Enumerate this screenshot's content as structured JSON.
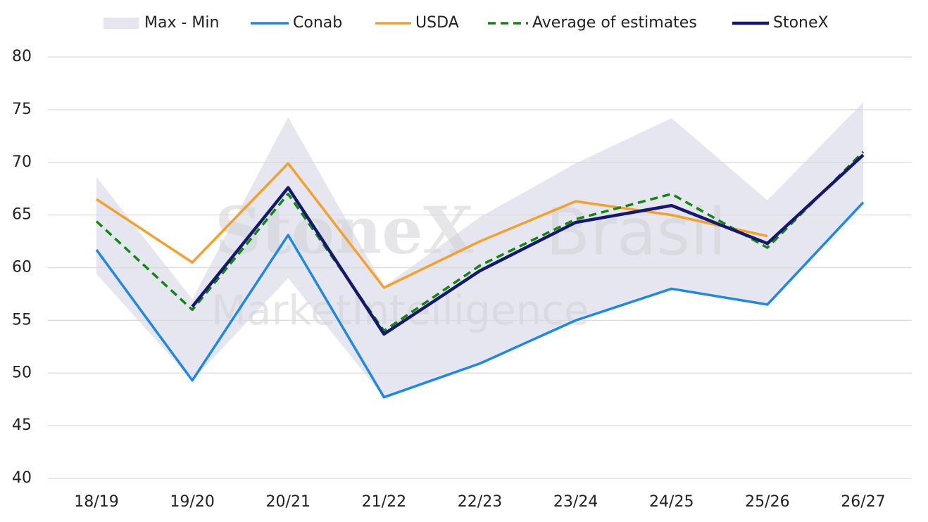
{
  "chart_data": {
    "type": "line",
    "categories": [
      "18/19",
      "19/20",
      "20/21",
      "21/22",
      "22/23",
      "23/24",
      "24/25",
      "25/26",
      "26/27"
    ],
    "band": {
      "name": "Max - Min",
      "color": "#e6e6f0",
      "upper": [
        68.6,
        57.0,
        74.3,
        58.2,
        64.8,
        69.9,
        74.2,
        66.4,
        75.7
      ],
      "lower": [
        59.4,
        49.3,
        59.0,
        47.7,
        50.9,
        55.0,
        58.0,
        56.5,
        66.2
      ]
    },
    "series": [
      {
        "name": "Conab",
        "color": "#1e88e5",
        "width": 3.5,
        "values": [
          61.7,
          49.3,
          63.1,
          47.7,
          50.9,
          55.0,
          58.0,
          56.5,
          66.2
        ]
      },
      {
        "name": "USDA",
        "color": "#f4a02a",
        "width": 3.5,
        "values": [
          66.5,
          60.5,
          69.9,
          58.1,
          62.5,
          66.3,
          65.0,
          63.0,
          null
        ]
      },
      {
        "name": "Average of estimates",
        "color": "#0d8a0d",
        "width": 3.5,
        "dashed": true,
        "values": [
          64.4,
          56.0,
          67.0,
          54.0,
          60.2,
          64.6,
          67.0,
          61.9,
          71.0
        ]
      },
      {
        "name": "StoneX",
        "color": "#14196e",
        "width": 4.5,
        "values": [
          null,
          56.3,
          67.6,
          53.7,
          59.7,
          64.3,
          65.9,
          62.3,
          70.7
        ]
      }
    ],
    "watermark": [
      "StoneX",
      "Brasil",
      "MarketIntelligence"
    ],
    "ylim": [
      40,
      80
    ],
    "yticks": [
      40,
      45,
      50,
      55,
      60,
      65,
      70,
      75,
      80
    ],
    "grid": true,
    "legend": "top"
  }
}
